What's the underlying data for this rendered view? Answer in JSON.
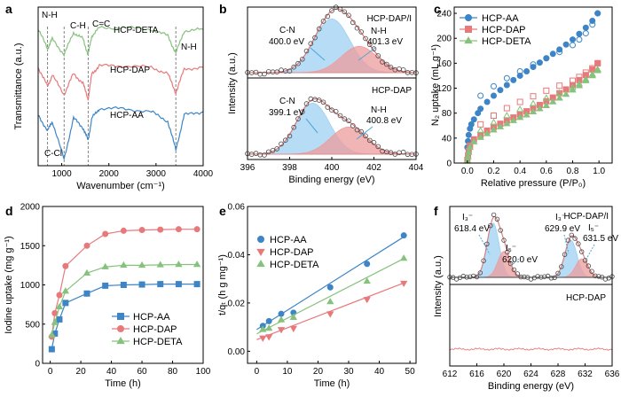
{
  "panels": {
    "a": "a",
    "b": "b",
    "c": "c",
    "d": "d",
    "e": "e",
    "f": "f"
  },
  "colors": {
    "aa": "#3d85c6",
    "dap": "#e8797b",
    "deta": "#86c27d",
    "blue_fill": "#9fd0f1",
    "red_fill": "#ee9c9c",
    "envelope": "#d97a7a"
  },
  "chart_data": [
    {
      "id": "a",
      "type": "line",
      "xlabel": "Wavenumber (cm⁻¹)",
      "ylabel": "Transmittance (a.u.)",
      "xlim": [
        500,
        4000
      ],
      "xticks": [
        "1000",
        "2000",
        "3000",
        "4000"
      ],
      "series": [
        {
          "name": "HCP-DETA",
          "color_key": "deta",
          "baseline": 0.86,
          "x": [
            500,
            700,
            800,
            1050,
            1250,
            1450,
            1560,
            1640,
            1800,
            2300,
            2900,
            3250,
            3420,
            3600,
            4000
          ],
          "y": [
            0.86,
            0.74,
            0.8,
            0.7,
            0.84,
            0.8,
            0.7,
            0.82,
            0.87,
            0.87,
            0.86,
            0.82,
            0.71,
            0.85,
            0.86
          ]
        },
        {
          "name": "HCP-DAP",
          "color_key": "dap",
          "baseline": 0.63,
          "x": [
            500,
            700,
            800,
            1050,
            1250,
            1450,
            1560,
            1640,
            1800,
            2300,
            2900,
            3250,
            3420,
            3600,
            4000
          ],
          "y": [
            0.62,
            0.5,
            0.57,
            0.45,
            0.58,
            0.52,
            0.42,
            0.58,
            0.63,
            0.63,
            0.62,
            0.58,
            0.46,
            0.61,
            0.62
          ]
        },
        {
          "name": "HCP-AA",
          "color_key": "aa",
          "baseline": 0.35,
          "x": [
            500,
            700,
            800,
            1050,
            1250,
            1450,
            1560,
            1640,
            1800,
            2300,
            2900,
            3250,
            3420,
            3600,
            4000
          ],
          "y": [
            0.32,
            0.22,
            0.28,
            0.04,
            0.3,
            0.24,
            0.16,
            0.3,
            0.36,
            0.36,
            0.34,
            0.28,
            0.1,
            0.32,
            0.34
          ]
        }
      ],
      "annotations": [
        "N-H",
        "C-H",
        "C=C",
        "N-H",
        "C-Cl",
        "HCP-DETA",
        "HCP-DAP",
        "HCP-AA"
      ],
      "guide_x": [
        700,
        1050,
        1560,
        3420
      ]
    },
    {
      "id": "b_top",
      "type": "line",
      "title": "HCP-DAP/I",
      "peaks": [
        {
          "label": "C-N",
          "value": "400.0 eV",
          "center": 400.0,
          "color_key": "blue_fill"
        },
        {
          "label": "N-H",
          "value": "401.3 eV",
          "center": 401.3,
          "color_key": "red_fill"
        }
      ]
    },
    {
      "id": "b_bottom",
      "type": "line",
      "title": "HCP-DAP",
      "xlabel": "Binding energy (eV)",
      "ylabel": "Intensity (a.u.)",
      "xlim": [
        396,
        404
      ],
      "xticks": [
        "396",
        "398",
        "400",
        "402",
        "404"
      ],
      "peaks": [
        {
          "label": "C-N",
          "value": "399.1 eV",
          "center": 399.1,
          "color_key": "blue_fill"
        },
        {
          "label": "N-H",
          "value": "400.8 eV",
          "center": 400.8,
          "color_key": "red_fill"
        }
      ]
    },
    {
      "id": "c",
      "type": "scatter",
      "xlabel": "Relative pressure (P/P₀)",
      "ylabel": "N₂ uptake (mL g⁻¹)",
      "xlim": [
        -0.1,
        1.1
      ],
      "ylim": [
        0,
        250
      ],
      "xticks": [
        "0.0",
        "0.2",
        "0.4",
        "0.6",
        "0.8",
        "1.0"
      ],
      "yticks": [
        "0",
        "40",
        "80",
        "120",
        "160",
        "200",
        "240"
      ],
      "series": [
        {
          "name": "HCP-AA",
          "color_key": "aa",
          "marker": "circle",
          "adsorption": {
            "x": [
              0.0,
              0.005,
              0.01,
              0.02,
              0.03,
              0.05,
              0.08,
              0.1,
              0.15,
              0.2,
              0.25,
              0.3,
              0.35,
              0.4,
              0.45,
              0.5,
              0.55,
              0.6,
              0.65,
              0.7,
              0.75,
              0.8,
              0.85,
              0.9,
              0.95,
              0.99
            ],
            "y": [
              25,
              35,
              45,
              55,
              62,
              70,
              80,
              87,
              98,
              108,
              117,
              125,
              133,
              140,
              147,
              154,
              161,
              168,
              175,
              182,
              190,
              198,
              207,
              217,
              228,
              240
            ]
          },
          "desorption": {
            "x": [
              0.1,
              0.2,
              0.3,
              0.4,
              0.5,
              0.6,
              0.7,
              0.8,
              0.85,
              0.9,
              0.95,
              0.99
            ],
            "y": [
              108,
              123,
              136,
              147,
              158,
              168,
              178,
              189,
              198,
              208,
              222,
              240
            ]
          }
        },
        {
          "name": "HCP-DAP",
          "color_key": "dap",
          "marker": "square",
          "adsorption": {
            "x": [
              0.0,
              0.005,
              0.01,
              0.02,
              0.05,
              0.1,
              0.15,
              0.2,
              0.25,
              0.3,
              0.35,
              0.4,
              0.45,
              0.5,
              0.55,
              0.6,
              0.65,
              0.7,
              0.75,
              0.8,
              0.85,
              0.9,
              0.95,
              0.99
            ],
            "y": [
              5,
              12,
              20,
              28,
              38,
              45,
              52,
              58,
              63,
              68,
              73,
              78,
              83,
              88,
              93,
              99,
              105,
              112,
              118,
              125,
              133,
              141,
              150,
              160
            ]
          },
          "desorption": {
            "x": [
              0.1,
              0.2,
              0.3,
              0.4,
              0.5,
              0.6,
              0.7,
              0.8,
              0.85,
              0.9,
              0.95,
              0.99
            ],
            "y": [
              62,
              76,
              88,
              98,
              107,
              116,
              124,
              132,
              138,
              145,
              152,
              160
            ]
          }
        },
        {
          "name": "HCP-DETA",
          "color_key": "deta",
          "marker": "triangle",
          "adsorption": {
            "x": [
              0.0,
              0.005,
              0.01,
              0.02,
              0.05,
              0.1,
              0.15,
              0.2,
              0.25,
              0.3,
              0.35,
              0.4,
              0.45,
              0.5,
              0.55,
              0.6,
              0.65,
              0.7,
              0.75,
              0.8,
              0.85,
              0.9,
              0.95,
              0.99
            ],
            "y": [
              3,
              10,
              17,
              25,
              34,
              41,
              47,
              53,
              58,
              63,
              68,
              73,
              77,
              82,
              87,
              92,
              98,
              104,
              110,
              117,
              124,
              132,
              140,
              148
            ]
          },
          "desorption": {
            "x": [
              0.1,
              0.2,
              0.3,
              0.4,
              0.5,
              0.6,
              0.7,
              0.8,
              0.85,
              0.9,
              0.95,
              0.99
            ],
            "y": [
              52,
              65,
              76,
              86,
              95,
              104,
              112,
              121,
              127,
              134,
              142,
              150
            ]
          }
        }
      ]
    },
    {
      "id": "d",
      "type": "line",
      "xlabel": "Time (h)",
      "ylabel": "Iodine uptake (mg g⁻¹)",
      "xlim": [
        -5,
        100
      ],
      "ylim": [
        0,
        2000
      ],
      "xticks": [
        "0",
        "20",
        "40",
        "60",
        "80",
        "100"
      ],
      "yticks": [
        "0",
        "500",
        "1000",
        "1500",
        "2000"
      ],
      "series": [
        {
          "name": "HCP-AA",
          "color_key": "aa",
          "marker": "square",
          "x": [
            1,
            3,
            6,
            10,
            24,
            36,
            48,
            60,
            72,
            84,
            96
          ],
          "y": [
            180,
            380,
            560,
            770,
            890,
            990,
            1000,
            1005,
            1010,
            1010,
            1010
          ]
        },
        {
          "name": "HCP-DAP",
          "color_key": "dap",
          "marker": "circle",
          "x": [
            1,
            3,
            6,
            10,
            24,
            36,
            48,
            60,
            72,
            84,
            96
          ],
          "y": [
            340,
            640,
            870,
            1240,
            1500,
            1650,
            1690,
            1700,
            1705,
            1710,
            1710
          ]
        },
        {
          "name": "HCP-DETA",
          "color_key": "deta",
          "marker": "triangle",
          "x": [
            1,
            3,
            6,
            10,
            24,
            36,
            48,
            60,
            72,
            84,
            96
          ],
          "y": [
            360,
            520,
            720,
            920,
            1150,
            1230,
            1250,
            1250,
            1255,
            1260,
            1260
          ]
        }
      ]
    },
    {
      "id": "e",
      "type": "scatter",
      "xlabel": "Time (h)",
      "ylabel": "t/qₜ (h g mg⁻¹)",
      "xlim": [
        -3,
        52
      ],
      "ylim": [
        -0.005,
        0.06
      ],
      "xticks": [
        "0",
        "10",
        "20",
        "30",
        "40",
        "50"
      ],
      "yticks": [
        "0.00",
        "0.02",
        "0.04",
        "0.06"
      ],
      "series": [
        {
          "name": "HCP-AA",
          "color_key": "aa",
          "marker": "circle",
          "x": [
            2,
            4,
            8,
            12,
            24,
            36,
            48
          ],
          "y": [
            0.0105,
            0.0125,
            0.0155,
            0.016,
            0.0265,
            0.0362,
            0.048
          ],
          "fit": [
            0.009,
            0.0008
          ]
        },
        {
          "name": "HCP-DAP",
          "color_key": "dap",
          "marker": "triangle-down",
          "x": [
            2,
            4,
            8,
            12,
            24,
            36,
            48
          ],
          "y": [
            0.0055,
            0.006,
            0.009,
            0.0095,
            0.0155,
            0.0215,
            0.0282
          ],
          "fit": [
            0.0048,
            0.00049
          ]
        },
        {
          "name": "HCP-DETA",
          "color_key": "deta",
          "marker": "triangle",
          "x": [
            2,
            4,
            8,
            12,
            24,
            36,
            48
          ],
          "y": [
            0.009,
            0.0095,
            0.013,
            0.014,
            0.0205,
            0.029,
            0.0385
          ],
          "fit": [
            0.0072,
            0.00065
          ]
        }
      ]
    },
    {
      "id": "f_top",
      "type": "line",
      "title": "HCP-DAP/I",
      "peaks": [
        {
          "label": "I₃⁻",
          "value": "618.4 eV",
          "center": 618.4,
          "color_key": "blue_fill"
        },
        {
          "label": "I₅⁻",
          "value": "620.0 eV",
          "center": 620.0,
          "color_key": "red_fill"
        },
        {
          "label": "I₃⁻",
          "value": "629.9 eV",
          "center": 629.9,
          "color_key": "blue_fill"
        },
        {
          "label": "I₅⁻",
          "value": "631.5 eV",
          "center": 631.5,
          "color_key": "red_fill"
        }
      ]
    },
    {
      "id": "f_bottom",
      "type": "line",
      "title": "HCP-DAP",
      "xlabel": "Binding energy (eV)",
      "ylabel": "Intensity (a.u.)",
      "xlim": [
        612,
        636
      ],
      "xticks": [
        "612",
        "616",
        "620",
        "624",
        "628",
        "632",
        "636"
      ]
    }
  ],
  "icons": {
    "circle": "circle-marker-icon",
    "square": "square-marker-icon",
    "triangle": "triangle-marker-icon"
  }
}
